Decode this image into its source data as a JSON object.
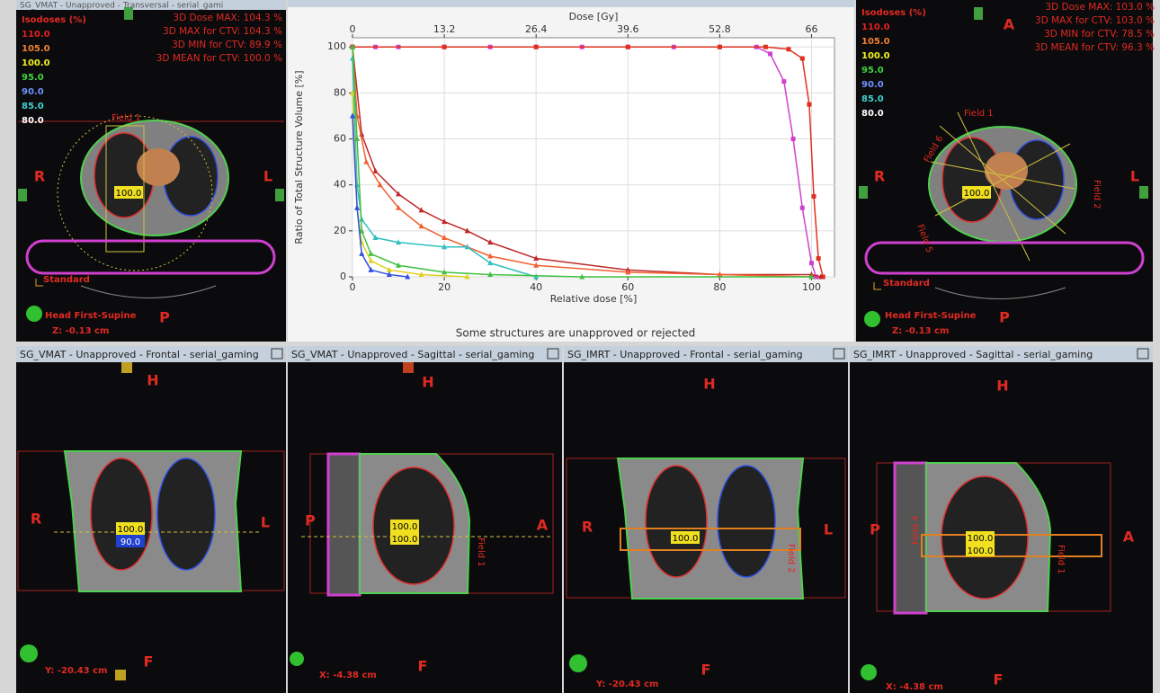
{
  "transversal_vmat": {
    "title": "SG_VMAT - Unapproved - Transversal - serial_gami",
    "isodose_heading": "Isodoses (%)",
    "isodoses": [
      "110.0",
      "105.0",
      "100.0",
      "95.0",
      "90.0",
      "85.0",
      "80.0"
    ],
    "isodose_colors": [
      "#e02020",
      "#f08030",
      "#f0f020",
      "#40d040",
      "#7090ff",
      "#40d0d0",
      "#ffffff"
    ],
    "stats": [
      "3D Dose MAX: 104.3 %",
      "3D MAX for CTV: 104.3 %",
      "3D MIN for CTV: 89.9 %",
      "3D MEAN for CTV: 100.0 %"
    ],
    "left": "R",
    "right": "L",
    "posterior": "P",
    "field": "Field 1",
    "dose_box": "100.0",
    "protocol": "Standard",
    "orientation": "Head First-Supine",
    "position": "Z: -0.13 cm"
  },
  "dvh": {
    "type": "line",
    "x_label": "Relative dose [%]",
    "x2_label": "Dose [Gy]",
    "y_label": "Ratio of Total Structure Volume [%]",
    "note": "Some structures are unapproved or rejected",
    "xlim": [
      0,
      105
    ],
    "xticks": [
      0,
      20,
      40,
      60,
      80,
      100
    ],
    "x2lim": [
      0,
      69.3
    ],
    "x2ticks": [
      0,
      13.2,
      26.4,
      39.6,
      52.8,
      66
    ],
    "ylim": [
      0,
      104
    ],
    "yticks": [
      0,
      20,
      40,
      60,
      80,
      100
    ],
    "grid": true,
    "series": [
      {
        "color": "#d040d0",
        "marker": "square",
        "x": [
          0,
          5,
          10,
          20,
          30,
          40,
          50,
          60,
          70,
          80,
          88,
          91,
          94,
          96,
          98,
          100,
          101
        ],
        "values": [
          100,
          100,
          100,
          100,
          100,
          100,
          100,
          100,
          100,
          100,
          100,
          97,
          85,
          60,
          30,
          6,
          0
        ]
      },
      {
        "color": "#e03020",
        "marker": "square",
        "x": [
          0,
          20,
          40,
          60,
          80,
          90,
          95,
          98,
          99.5,
          100.5,
          101.5,
          102.5
        ],
        "values": [
          100,
          100,
          100,
          100,
          100,
          100,
          99,
          95,
          75,
          35,
          8,
          0
        ]
      },
      {
        "color": "#c02828",
        "marker": "triangle",
        "x": [
          0,
          2,
          5,
          10,
          15,
          20,
          25,
          30,
          40,
          60,
          80,
          100,
          102
        ],
        "values": [
          100,
          62,
          46,
          36,
          29,
          24,
          20,
          15,
          8,
          3,
          1,
          1,
          0
        ]
      },
      {
        "color": "#f06030",
        "marker": "triangle",
        "x": [
          0,
          1,
          3,
          6,
          10,
          15,
          20,
          30,
          40,
          60,
          80,
          100
        ],
        "values": [
          100,
          70,
          50,
          40,
          30,
          22,
          17,
          9,
          5,
          2,
          1,
          0
        ]
      },
      {
        "color": "#30c0c0",
        "marker": "triangle",
        "x": [
          0,
          1,
          2,
          5,
          10,
          20,
          25,
          30,
          40
        ],
        "values": [
          95,
          40,
          25,
          17,
          15,
          13,
          13,
          6,
          0
        ]
      },
      {
        "color": "#e0d020",
        "marker": "triangle",
        "x": [
          0,
          1,
          2,
          4,
          8,
          15,
          25
        ],
        "values": [
          80,
          30,
          15,
          7,
          3,
          1,
          0
        ]
      },
      {
        "color": "#40c040",
        "marker": "triangle",
        "x": [
          0,
          1,
          2,
          4,
          10,
          20,
          30,
          50,
          100
        ],
        "values": [
          100,
          60,
          20,
          10,
          5,
          2,
          1,
          0,
          0
        ]
      },
      {
        "color": "#3050e0",
        "marker": "triangle",
        "x": [
          0,
          1,
          2,
          4,
          8,
          12
        ],
        "values": [
          70,
          30,
          10,
          3,
          1,
          0
        ]
      }
    ]
  },
  "transversal_imrt": {
    "isodose_heading": "Isodoses (%)",
    "isodoses": [
      "110.0",
      "105.0",
      "100.0",
      "95.0",
      "90.0",
      "85.0",
      "80.0"
    ],
    "isodose_colors": [
      "#e02020",
      "#f08030",
      "#f0f020",
      "#40d040",
      "#7090ff",
      "#40d0d0",
      "#ffffff"
    ],
    "stats": [
      "3D Dose MAX: 103.0 %",
      "3D MAX for CTV: 103.0 %",
      "3D MIN for CTV: 78.5 %",
      "3D MEAN for CTV: 96.3 %"
    ],
    "left": "R",
    "right": "L",
    "anterior": "A",
    "posterior": "P",
    "fields": [
      "Field 1",
      "Field 2",
      "Field 5",
      "Field 6"
    ],
    "dose_box": "100.0",
    "protocol": "Standard",
    "orientation": "Head First-Supine",
    "position": "Z: -0.13 cm"
  },
  "frontal_vmat": {
    "title": "SG_VMAT - Unapproved - Frontal - serial_gaming",
    "top": "H",
    "bottom": "F",
    "left": "R",
    "right": "L",
    "dose_boxes": [
      "100.0",
      "90.0"
    ],
    "position": "Y: -20.43 cm"
  },
  "sagittal_vmat": {
    "title": "SG_VMAT - Unapproved - Sagittal - serial_gaming",
    "top": "H",
    "bottom": "F",
    "left": "P",
    "right": "A",
    "dose_boxes": [
      "100.0",
      "100.0"
    ],
    "field": "Field 1",
    "position": "X: -4.38 cm"
  },
  "frontal_imrt": {
    "title": "SG_IMRT - Unapproved - Frontal - serial_gaming",
    "top": "H",
    "bottom": "F",
    "left": "R",
    "right": "L",
    "dose_boxes": [
      "100.0"
    ],
    "field": "Field 2",
    "position": "Y: -20.43 cm"
  },
  "sagittal_imrt": {
    "title": "SG_IMRT - Unapproved - Sagittal - serial_gaming",
    "top": "H",
    "bottom": "F",
    "left": "P",
    "right": "A",
    "dose_boxes": [
      "100.0",
      "100.0"
    ],
    "fields": [
      "Field 4",
      "Field 1"
    ],
    "position": "X: -4.38 cm"
  }
}
